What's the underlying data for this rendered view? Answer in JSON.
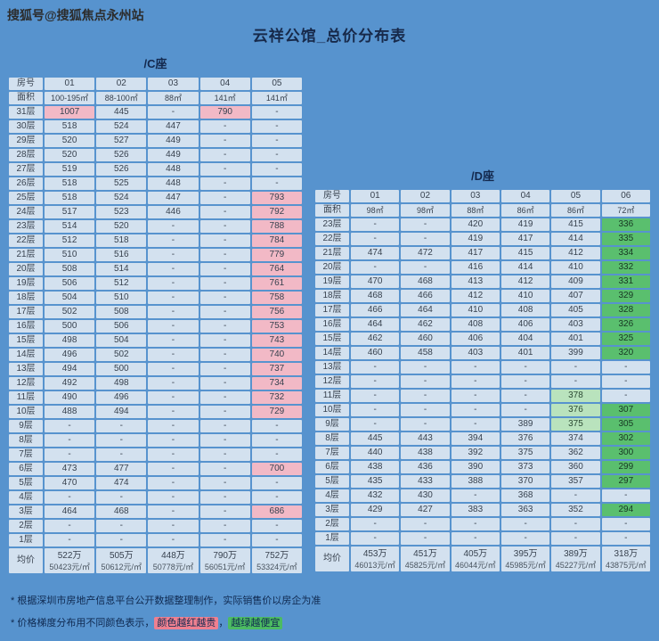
{
  "watermark": "搜狐号@搜狐焦点永州站",
  "title": "云祥公馆_总价分布表",
  "colors": {
    "page_bg": "#5793ce",
    "cell_bg": "#d3e1ef",
    "pink_highlight": "#f2b9c6",
    "green_highlight": "#5abf6e",
    "light_green_highlight": "#b9e3bd"
  },
  "notes": {
    "source": "* 根据深圳市房地产信息平台公开数据整理制作，实际销售价以房企为准",
    "legend_prefix": "* 价格梯度分布用不同颜色表示，",
    "legend_red": "颜色越红越贵",
    "legend_sep": "，",
    "legend_green": "越绿越便宜"
  },
  "chart_data": [
    {
      "type": "heatmap",
      "name": "/C座",
      "room_header": "房号",
      "area_header": "面积",
      "avg_label": "均价",
      "rooms": [
        "01",
        "02",
        "03",
        "04",
        "05"
      ],
      "areas": [
        "100-195㎡",
        "88-100㎡",
        "88㎡",
        "141㎡",
        "141㎡"
      ],
      "rows": [
        {
          "floor": "31层",
          "values": [
            "1007",
            "445",
            "-",
            "790",
            "-"
          ],
          "marks": [
            "p",
            "",
            "",
            "p",
            ""
          ]
        },
        {
          "floor": "30层",
          "values": [
            "518",
            "524",
            "447",
            "-",
            "-"
          ]
        },
        {
          "floor": "29层",
          "values": [
            "520",
            "527",
            "449",
            "-",
            "-"
          ]
        },
        {
          "floor": "28层",
          "values": [
            "520",
            "526",
            "449",
            "-",
            "-"
          ]
        },
        {
          "floor": "27层",
          "values": [
            "519",
            "526",
            "448",
            "-",
            "-"
          ]
        },
        {
          "floor": "26层",
          "values": [
            "518",
            "525",
            "448",
            "-",
            "-"
          ]
        },
        {
          "floor": "25层",
          "values": [
            "518",
            "524",
            "447",
            "-",
            "793"
          ],
          "marks": [
            "",
            "",
            "",
            "",
            "p"
          ]
        },
        {
          "floor": "24层",
          "values": [
            "517",
            "523",
            "446",
            "-",
            "792"
          ],
          "marks": [
            "",
            "",
            "",
            "",
            "p"
          ]
        },
        {
          "floor": "23层",
          "values": [
            "514",
            "520",
            "-",
            "-",
            "788"
          ],
          "marks": [
            "",
            "",
            "",
            "",
            "p"
          ]
        },
        {
          "floor": "22层",
          "values": [
            "512",
            "518",
            "-",
            "-",
            "784"
          ],
          "marks": [
            "",
            "",
            "",
            "",
            "p"
          ]
        },
        {
          "floor": "21层",
          "values": [
            "510",
            "516",
            "-",
            "-",
            "779"
          ],
          "marks": [
            "",
            "",
            "",
            "",
            "p"
          ]
        },
        {
          "floor": "20层",
          "values": [
            "508",
            "514",
            "-",
            "-",
            "764"
          ],
          "marks": [
            "",
            "",
            "",
            "",
            "p"
          ]
        },
        {
          "floor": "19层",
          "values": [
            "506",
            "512",
            "-",
            "-",
            "761"
          ],
          "marks": [
            "",
            "",
            "",
            "",
            "p"
          ]
        },
        {
          "floor": "18层",
          "values": [
            "504",
            "510",
            "-",
            "-",
            "758"
          ],
          "marks": [
            "",
            "",
            "",
            "",
            "p"
          ]
        },
        {
          "floor": "17层",
          "values": [
            "502",
            "508",
            "-",
            "-",
            "756"
          ],
          "marks": [
            "",
            "",
            "",
            "",
            "p"
          ]
        },
        {
          "floor": "16层",
          "values": [
            "500",
            "506",
            "-",
            "-",
            "753"
          ],
          "marks": [
            "",
            "",
            "",
            "",
            "p"
          ]
        },
        {
          "floor": "15层",
          "values": [
            "498",
            "504",
            "-",
            "-",
            "743"
          ],
          "marks": [
            "",
            "",
            "",
            "",
            "p"
          ]
        },
        {
          "floor": "14层",
          "values": [
            "496",
            "502",
            "-",
            "-",
            "740"
          ],
          "marks": [
            "",
            "",
            "",
            "",
            "p"
          ]
        },
        {
          "floor": "13层",
          "values": [
            "494",
            "500",
            "-",
            "-",
            "737"
          ],
          "marks": [
            "",
            "",
            "",
            "",
            "p"
          ]
        },
        {
          "floor": "12层",
          "values": [
            "492",
            "498",
            "-",
            "-",
            "734"
          ],
          "marks": [
            "",
            "",
            "",
            "",
            "p"
          ]
        },
        {
          "floor": "11层",
          "values": [
            "490",
            "496",
            "-",
            "-",
            "732"
          ],
          "marks": [
            "",
            "",
            "",
            "",
            "p"
          ]
        },
        {
          "floor": "10层",
          "values": [
            "488",
            "494",
            "-",
            "-",
            "729"
          ],
          "marks": [
            "",
            "",
            "",
            "",
            "p"
          ]
        },
        {
          "floor": "9层",
          "values": [
            "-",
            "-",
            "-",
            "-",
            "-"
          ]
        },
        {
          "floor": "8层",
          "values": [
            "-",
            "-",
            "-",
            "-",
            "-"
          ]
        },
        {
          "floor": "7层",
          "values": [
            "-",
            "-",
            "-",
            "-",
            "-"
          ]
        },
        {
          "floor": "6层",
          "values": [
            "473",
            "477",
            "-",
            "-",
            "700"
          ],
          "marks": [
            "",
            "",
            "",
            "",
            "p"
          ]
        },
        {
          "floor": "5层",
          "values": [
            "470",
            "474",
            "-",
            "-",
            "-"
          ]
        },
        {
          "floor": "4层",
          "values": [
            "-",
            "-",
            "-",
            "-",
            "-"
          ]
        },
        {
          "floor": "3层",
          "values": [
            "464",
            "468",
            "-",
            "-",
            "686"
          ],
          "marks": [
            "",
            "",
            "",
            "",
            "p"
          ]
        },
        {
          "floor": "2层",
          "values": [
            "-",
            "-",
            "-",
            "-",
            "-"
          ]
        },
        {
          "floor": "1层",
          "values": [
            "-",
            "-",
            "-",
            "-",
            "-"
          ]
        }
      ],
      "avg": [
        [
          "522万",
          "50423元/㎡"
        ],
        [
          "505万",
          "50612元/㎡"
        ],
        [
          "448万",
          "50778元/㎡"
        ],
        [
          "790万",
          "56051元/㎡"
        ],
        [
          "752万",
          "53324元/㎡"
        ]
      ]
    },
    {
      "type": "heatmap",
      "name": "/D座",
      "room_header": "房号",
      "area_header": "面积",
      "avg_label": "均价",
      "rooms": [
        "01",
        "02",
        "03",
        "04",
        "05",
        "06"
      ],
      "areas": [
        "98㎡",
        "98㎡",
        "88㎡",
        "86㎡",
        "86㎡",
        "72㎡"
      ],
      "rows": [
        {
          "floor": "23层",
          "values": [
            "-",
            "-",
            "420",
            "419",
            "415",
            "336"
          ],
          "marks": [
            "",
            "",
            "",
            "",
            "",
            "g"
          ]
        },
        {
          "floor": "22层",
          "values": [
            "-",
            "-",
            "419",
            "417",
            "414",
            "335"
          ],
          "marks": [
            "",
            "",
            "",
            "",
            "",
            "g"
          ]
        },
        {
          "floor": "21层",
          "values": [
            "474",
            "472",
            "417",
            "415",
            "412",
            "334"
          ],
          "marks": [
            "",
            "",
            "",
            "",
            "",
            "g"
          ]
        },
        {
          "floor": "20层",
          "values": [
            "-",
            "-",
            "416",
            "414",
            "410",
            "332"
          ],
          "marks": [
            "",
            "",
            "",
            "",
            "",
            "g"
          ]
        },
        {
          "floor": "19层",
          "values": [
            "470",
            "468",
            "413",
            "412",
            "409",
            "331"
          ],
          "marks": [
            "",
            "",
            "",
            "",
            "",
            "g"
          ]
        },
        {
          "floor": "18层",
          "values": [
            "468",
            "466",
            "412",
            "410",
            "407",
            "329"
          ],
          "marks": [
            "",
            "",
            "",
            "",
            "",
            "g"
          ]
        },
        {
          "floor": "17层",
          "values": [
            "466",
            "464",
            "410",
            "408",
            "405",
            "328"
          ],
          "marks": [
            "",
            "",
            "",
            "",
            "",
            "g"
          ]
        },
        {
          "floor": "16层",
          "values": [
            "464",
            "462",
            "408",
            "406",
            "403",
            "326"
          ],
          "marks": [
            "",
            "",
            "",
            "",
            "",
            "g"
          ]
        },
        {
          "floor": "15层",
          "values": [
            "462",
            "460",
            "406",
            "404",
            "401",
            "325"
          ],
          "marks": [
            "",
            "",
            "",
            "",
            "",
            "g"
          ]
        },
        {
          "floor": "14层",
          "values": [
            "460",
            "458",
            "403",
            "401",
            "399",
            "320"
          ],
          "marks": [
            "",
            "",
            "",
            "",
            "",
            "g"
          ]
        },
        {
          "floor": "13层",
          "values": [
            "-",
            "-",
            "-",
            "-",
            "-",
            "-"
          ]
        },
        {
          "floor": "12层",
          "values": [
            "-",
            "-",
            "-",
            "-",
            "-",
            "-"
          ]
        },
        {
          "floor": "11层",
          "values": [
            "-",
            "-",
            "-",
            "-",
            "378",
            "-"
          ],
          "marks": [
            "",
            "",
            "",
            "",
            "lg",
            ""
          ]
        },
        {
          "floor": "10层",
          "values": [
            "-",
            "-",
            "-",
            "-",
            "376",
            "307"
          ],
          "marks": [
            "",
            "",
            "",
            "",
            "lg",
            "g"
          ]
        },
        {
          "floor": "9层",
          "values": [
            "-",
            "-",
            "-",
            "389",
            "375",
            "305"
          ],
          "marks": [
            "",
            "",
            "",
            "",
            "lg",
            "g"
          ]
        },
        {
          "floor": "8层",
          "values": [
            "445",
            "443",
            "394",
            "376",
            "374",
            "302"
          ],
          "marks": [
            "",
            "",
            "",
            "",
            "",
            "g"
          ]
        },
        {
          "floor": "7层",
          "values": [
            "440",
            "438",
            "392",
            "375",
            "362",
            "300"
          ],
          "marks": [
            "",
            "",
            "",
            "",
            "",
            "g"
          ]
        },
        {
          "floor": "6层",
          "values": [
            "438",
            "436",
            "390",
            "373",
            "360",
            "299"
          ],
          "marks": [
            "",
            "",
            "",
            "",
            "",
            "g"
          ]
        },
        {
          "floor": "5层",
          "values": [
            "435",
            "433",
            "388",
            "370",
            "357",
            "297"
          ],
          "marks": [
            "",
            "",
            "",
            "",
            "",
            "g"
          ]
        },
        {
          "floor": "4层",
          "values": [
            "432",
            "430",
            "-",
            "368",
            "-",
            "-"
          ]
        },
        {
          "floor": "3层",
          "values": [
            "429",
            "427",
            "383",
            "363",
            "352",
            "294"
          ],
          "marks": [
            "",
            "",
            "",
            "",
            "",
            "g"
          ]
        },
        {
          "floor": "2层",
          "values": [
            "-",
            "-",
            "-",
            "-",
            "-",
            "-"
          ]
        },
        {
          "floor": "1层",
          "values": [
            "-",
            "-",
            "-",
            "-",
            "-",
            "-"
          ]
        }
      ],
      "avg": [
        [
          "453万",
          "46013元/㎡"
        ],
        [
          "451万",
          "45825元/㎡"
        ],
        [
          "405万",
          "46044元/㎡"
        ],
        [
          "395万",
          "45985元/㎡"
        ],
        [
          "389万",
          "45227元/㎡"
        ],
        [
          "318万",
          "43875元/㎡"
        ]
      ]
    }
  ]
}
